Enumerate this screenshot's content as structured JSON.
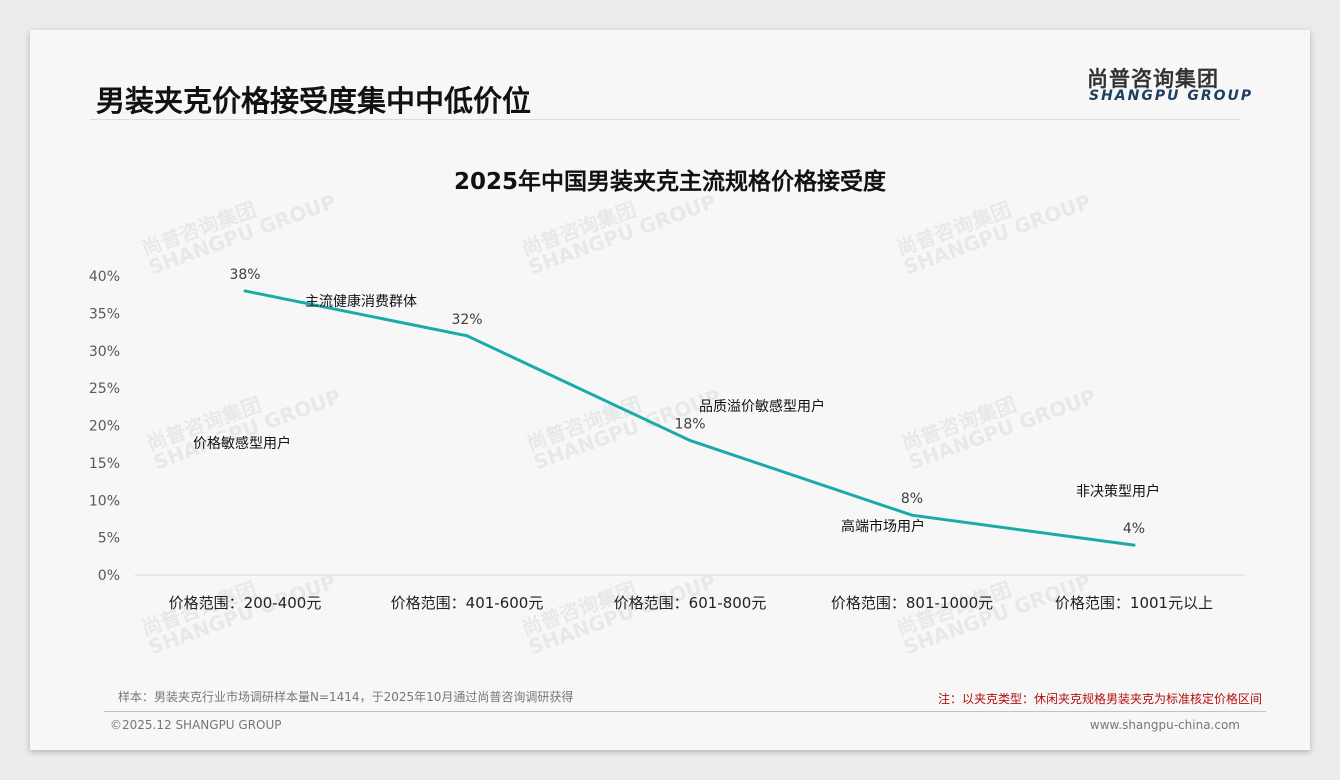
{
  "header": {
    "title": "男装夹克价格接受度集中中低价位",
    "logo_cn": "尚普咨询集团",
    "logo_en": "SHANGPU GROUP"
  },
  "chart_data": {
    "type": "line",
    "title": "2025年中国男装夹克主流规格价格接受度",
    "categories": [
      "价格范围：200-400元",
      "价格范围：401-600元",
      "价格范围：601-800元",
      "价格范围：801-1000元",
      "价格范围：1001元以上"
    ],
    "values": [
      38,
      32,
      18,
      8,
      4
    ],
    "data_labels": [
      "38%",
      "32%",
      "18%",
      "8%",
      "4%"
    ],
    "segments": [
      "价格敏感型用户",
      "主流健康消费群体",
      "品质溢价敏感型用户",
      "高端市场用户",
      "非决策型用户"
    ],
    "yticks": [
      "0%",
      "5%",
      "10%",
      "15%",
      "20%",
      "25%",
      "30%",
      "35%",
      "40%"
    ],
    "ylim": [
      0,
      40
    ],
    "color": "#1aaba8"
  },
  "footer": {
    "sample": "样本：男装夹克行业市场调研样本量N=1414，于2025年10月通过尚普咨询调研获得",
    "remark": "注：以夹克类型：休闲夹克规格男装夹克为标准核定价格区间",
    "copyright": "©2025.12 SHANGPU GROUP",
    "website": "www.shangpu-china.com"
  }
}
